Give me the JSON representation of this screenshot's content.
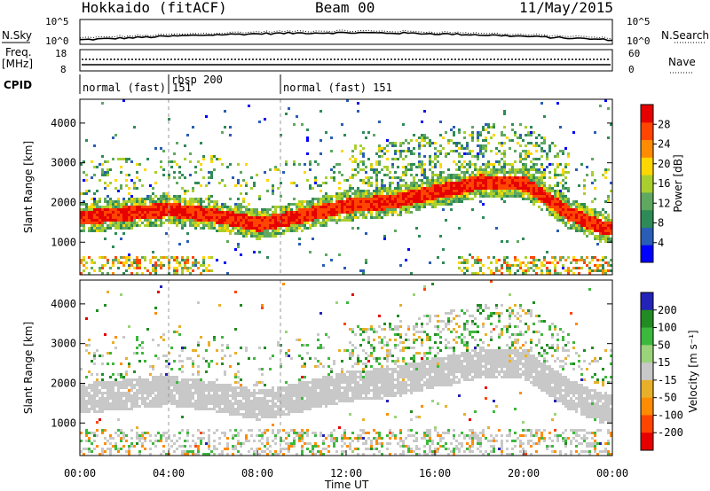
{
  "header": {
    "station": "Hokkaido (fitACF)",
    "beam": "Beam 00",
    "date": "11/May/2015"
  },
  "side_labels": {
    "nsky": "N.Sky",
    "nsearch": "N.Search",
    "freq": "Freq.",
    "freq_unit": "[MHz]",
    "nave": "Nave",
    "cpid": "CPID"
  },
  "noise_panel": {
    "left_ticks": [
      "10^5",
      "10^0"
    ],
    "right_ticks": [
      "10^5",
      "10^0"
    ]
  },
  "freq_panel": {
    "left_ticks": [
      "18",
      "8"
    ],
    "right_ticks": [
      "60",
      "0"
    ]
  },
  "cpid_segments": [
    {
      "label": "normal (fast) 151",
      "start_hour": 0.0
    },
    {
      "label": "rbsp 200",
      "start_hour": 4.2
    },
    {
      "label": "normal (fast) 151",
      "start_hour": 9.1
    }
  ],
  "colors": {
    "power_scale": [
      "#0000ff",
      "#2a5db5",
      "#2e8b57",
      "#5fa85f",
      "#a8cf2e",
      "#ffd700",
      "#ff8c00",
      "#ff4500",
      "#e60000"
    ],
    "velocity_scale": [
      "#2323b8",
      "#238b23",
      "#3cb83c",
      "#9bd37a",
      "#c8c8c8",
      "#e8b02a",
      "#ff8c00",
      "#ff4500",
      "#e60000"
    ]
  },
  "chart_data": [
    {
      "type": "heatmap",
      "name": "power",
      "ylabel": "Slant Range [km]",
      "yticks": [
        1000,
        2000,
        3000,
        4000
      ],
      "ylim": [
        180,
        4600
      ],
      "xticks": [
        "00:00",
        "04:00",
        "08:00",
        "12:00",
        "16:00",
        "20:00",
        "00:00"
      ],
      "xlim_hours": [
        0,
        24
      ],
      "colorbar": {
        "label": "Power [dB]",
        "ticks": [
          "4",
          "8",
          "12",
          "16",
          "20",
          "24",
          "28"
        ],
        "range": [
          0,
          32
        ]
      },
      "main_band": {
        "hours": [
          0,
          2,
          4,
          6,
          8,
          10,
          12,
          14,
          16,
          17,
          18,
          20,
          22,
          23.5
        ],
        "center_km": [
          1650,
          1750,
          1850,
          1700,
          1480,
          1700,
          1950,
          2050,
          2300,
          2400,
          2550,
          2500,
          1750,
          1400
        ]
      }
    },
    {
      "type": "heatmap",
      "name": "velocity",
      "ylabel": "Slant Range [km]",
      "yticks": [
        1000,
        2000,
        3000,
        4000
      ],
      "ylim": [
        180,
        4600
      ],
      "xticks": [
        "00:00",
        "04:00",
        "08:00",
        "12:00",
        "16:00",
        "20:00",
        "00:00"
      ],
      "xlim_hours": [
        0,
        24
      ],
      "colorbar": {
        "label": "Velocity [m s⁻¹]",
        "ticks": [
          "200",
          "100",
          "50",
          "15",
          "-15",
          "-50",
          "-100",
          "-200"
        ],
        "range": [
          -250,
          250
        ]
      }
    }
  ],
  "xlabel": "Time UT"
}
